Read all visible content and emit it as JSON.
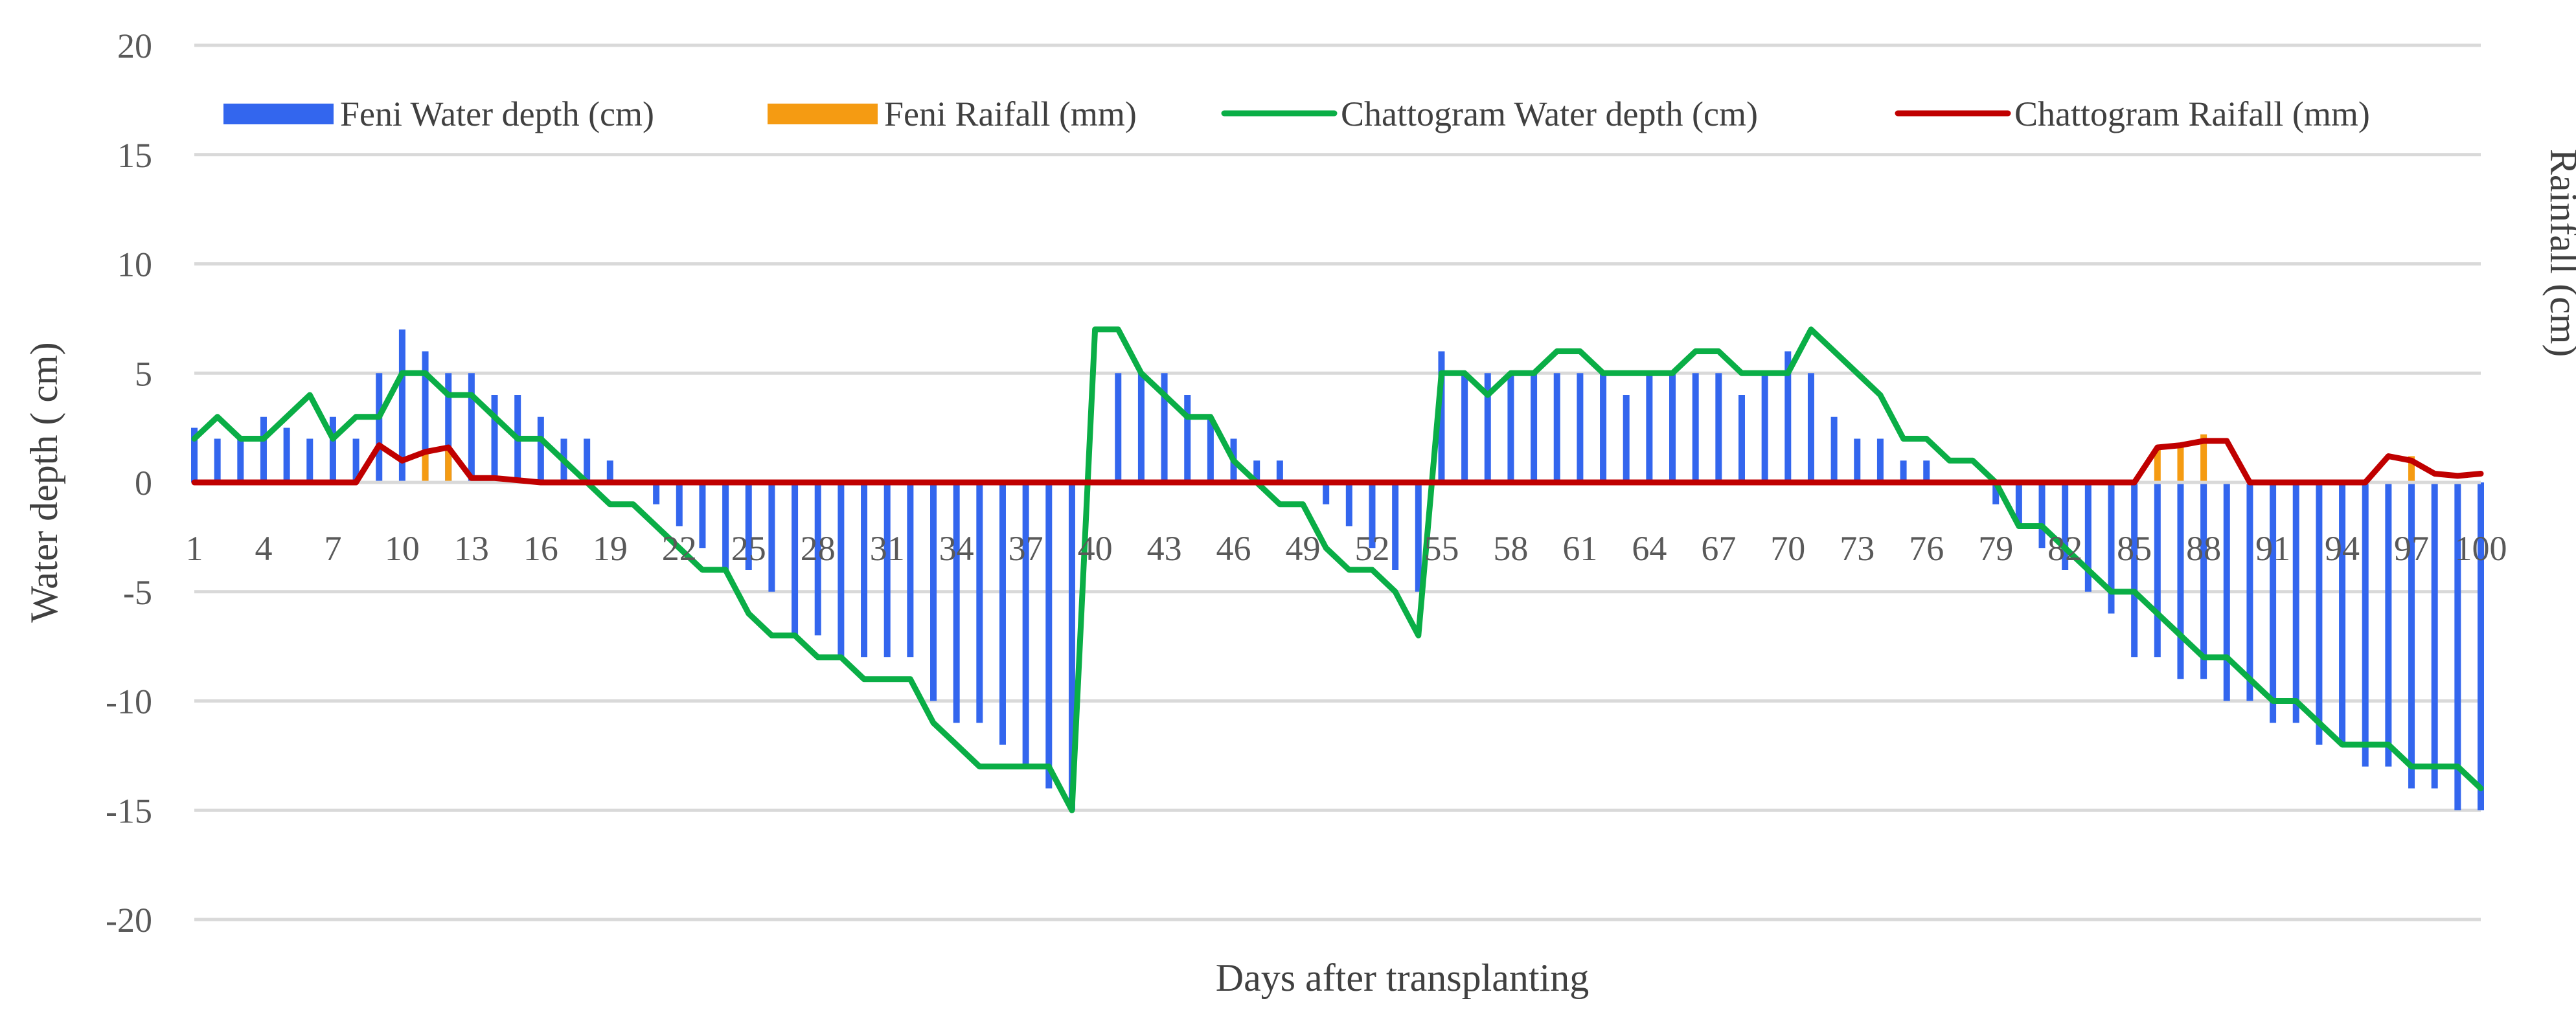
{
  "chart_data": {
    "type": "bar+line",
    "title": "",
    "xlabel": "Days after transplanting",
    "ylabel": "Water depth ( cm)",
    "y2label": "Rainfall (cm)",
    "ylim": [
      -20,
      20
    ],
    "yticks": [
      20,
      15,
      10,
      5,
      0,
      -5,
      -10,
      -15,
      -20
    ],
    "xlim": [
      1,
      100
    ],
    "xticks": [
      1,
      4,
      7,
      10,
      13,
      16,
      19,
      22,
      25,
      28,
      31,
      34,
      37,
      40,
      43,
      46,
      49,
      52,
      55,
      58,
      61,
      64,
      67,
      70,
      73,
      76,
      79,
      82,
      85,
      88,
      91,
      94,
      97,
      100
    ],
    "legend_position": "top",
    "series": [
      {
        "name": "Feni Water depth (cm)",
        "kind": "bar",
        "color": "#3366ee",
        "values": [
          2.5,
          2,
          2,
          3,
          2.5,
          2,
          3,
          2,
          5,
          7,
          6,
          5,
          5,
          4,
          4,
          3,
          2,
          2,
          1,
          0,
          -1,
          -2,
          -3,
          -4,
          -4,
          -5,
          -7,
          -7,
          -8,
          -8,
          -8,
          -8,
          -10,
          -11,
          -11,
          -12,
          -13,
          -14,
          -15,
          0,
          5,
          5,
          5,
          4,
          3,
          2,
          1,
          1,
          0,
          -1,
          -2,
          -3,
          -4,
          -5,
          6,
          5,
          5,
          5,
          5,
          5,
          5,
          5,
          4,
          5,
          5,
          5,
          5,
          4,
          5,
          6,
          5,
          3,
          2,
          2,
          1,
          1,
          0,
          0,
          -1,
          -2,
          -3,
          -4,
          -5,
          -6,
          -8,
          -8,
          -9,
          -9,
          -10,
          -10,
          -11,
          -11,
          -12,
          -12,
          -13,
          -13,
          -14,
          -14,
          -15,
          -15
        ]
      },
      {
        "name": "Feni Raifall (mm)",
        "kind": "bar",
        "color": "#f59b12",
        "values": [
          0,
          0,
          0,
          0,
          0,
          0,
          0,
          0,
          0,
          0,
          1.5,
          1.5,
          0,
          0,
          0,
          0,
          0,
          0,
          0,
          0,
          0,
          0,
          0,
          0,
          0,
          0,
          0,
          0,
          0,
          0,
          0,
          0,
          0,
          0,
          0,
          0,
          0,
          0,
          0,
          0,
          0,
          0,
          0,
          0,
          0,
          0,
          0,
          0,
          0,
          0,
          0,
          0,
          0,
          0,
          0,
          0,
          0,
          0,
          0,
          0,
          0,
          0,
          0,
          0,
          0,
          0,
          0,
          0,
          0,
          0,
          0,
          0,
          0,
          0,
          0,
          0,
          0,
          0,
          0,
          0,
          0,
          0,
          0,
          0,
          0,
          1.5,
          1.7,
          2.2,
          0,
          0,
          0,
          0,
          0,
          0,
          0,
          0,
          1.2,
          0,
          0,
          0
        ]
      },
      {
        "name": "Chattogram Water depth (cm)",
        "kind": "line",
        "color": "#0aae46",
        "values": [
          2,
          3,
          2,
          2,
          3,
          4,
          2,
          3,
          3,
          5,
          5,
          4,
          4,
          3,
          2,
          2,
          1,
          0,
          -1,
          -1,
          -2,
          -3,
          -4,
          -4,
          -6,
          -7,
          -7,
          -8,
          -8,
          -9,
          -9,
          -9,
          -11,
          -12,
          -13,
          -13,
          -13,
          -13,
          -15,
          7,
          7,
          5,
          4,
          3,
          3,
          1,
          0,
          -1,
          -1,
          -3,
          -4,
          -4,
          -5,
          -7,
          5,
          5,
          4,
          5,
          5,
          6,
          6,
          5,
          5,
          5,
          5,
          6,
          6,
          5,
          5,
          5,
          7,
          6,
          5,
          4,
          2,
          2,
          1,
          1,
          0,
          -2,
          -2,
          -3,
          -4,
          -5,
          -5,
          -6,
          -7,
          -8,
          -8,
          -9,
          -10,
          -10,
          -11,
          -12,
          -12,
          -12,
          -13,
          -13,
          -13,
          -14
        ]
      },
      {
        "name": "Chattogram Raifall (mm)",
        "kind": "line",
        "color": "#c00000",
        "values": [
          0,
          0,
          0,
          0,
          0,
          0,
          0,
          0,
          1.7,
          1,
          1.4,
          1.6,
          0.2,
          0.2,
          0.1,
          0,
          0,
          0,
          0,
          0,
          0,
          0,
          0,
          0,
          0,
          0,
          0,
          0,
          0,
          0,
          0,
          0,
          0,
          0,
          0,
          0,
          0,
          0,
          0,
          0,
          0,
          0,
          0,
          0,
          0,
          0,
          0,
          0,
          0,
          0,
          0,
          0,
          0,
          0,
          0,
          0,
          0,
          0,
          0,
          0,
          0,
          0,
          0,
          0,
          0,
          0,
          0,
          0,
          0,
          0,
          0,
          0,
          0,
          0,
          0,
          0,
          0,
          0,
          0,
          0,
          0,
          0,
          0,
          0,
          0,
          1.6,
          1.7,
          1.9,
          1.9,
          0,
          0,
          0,
          0,
          0,
          0,
          1.2,
          1,
          0.4,
          0.3,
          0.4
        ]
      }
    ]
  }
}
